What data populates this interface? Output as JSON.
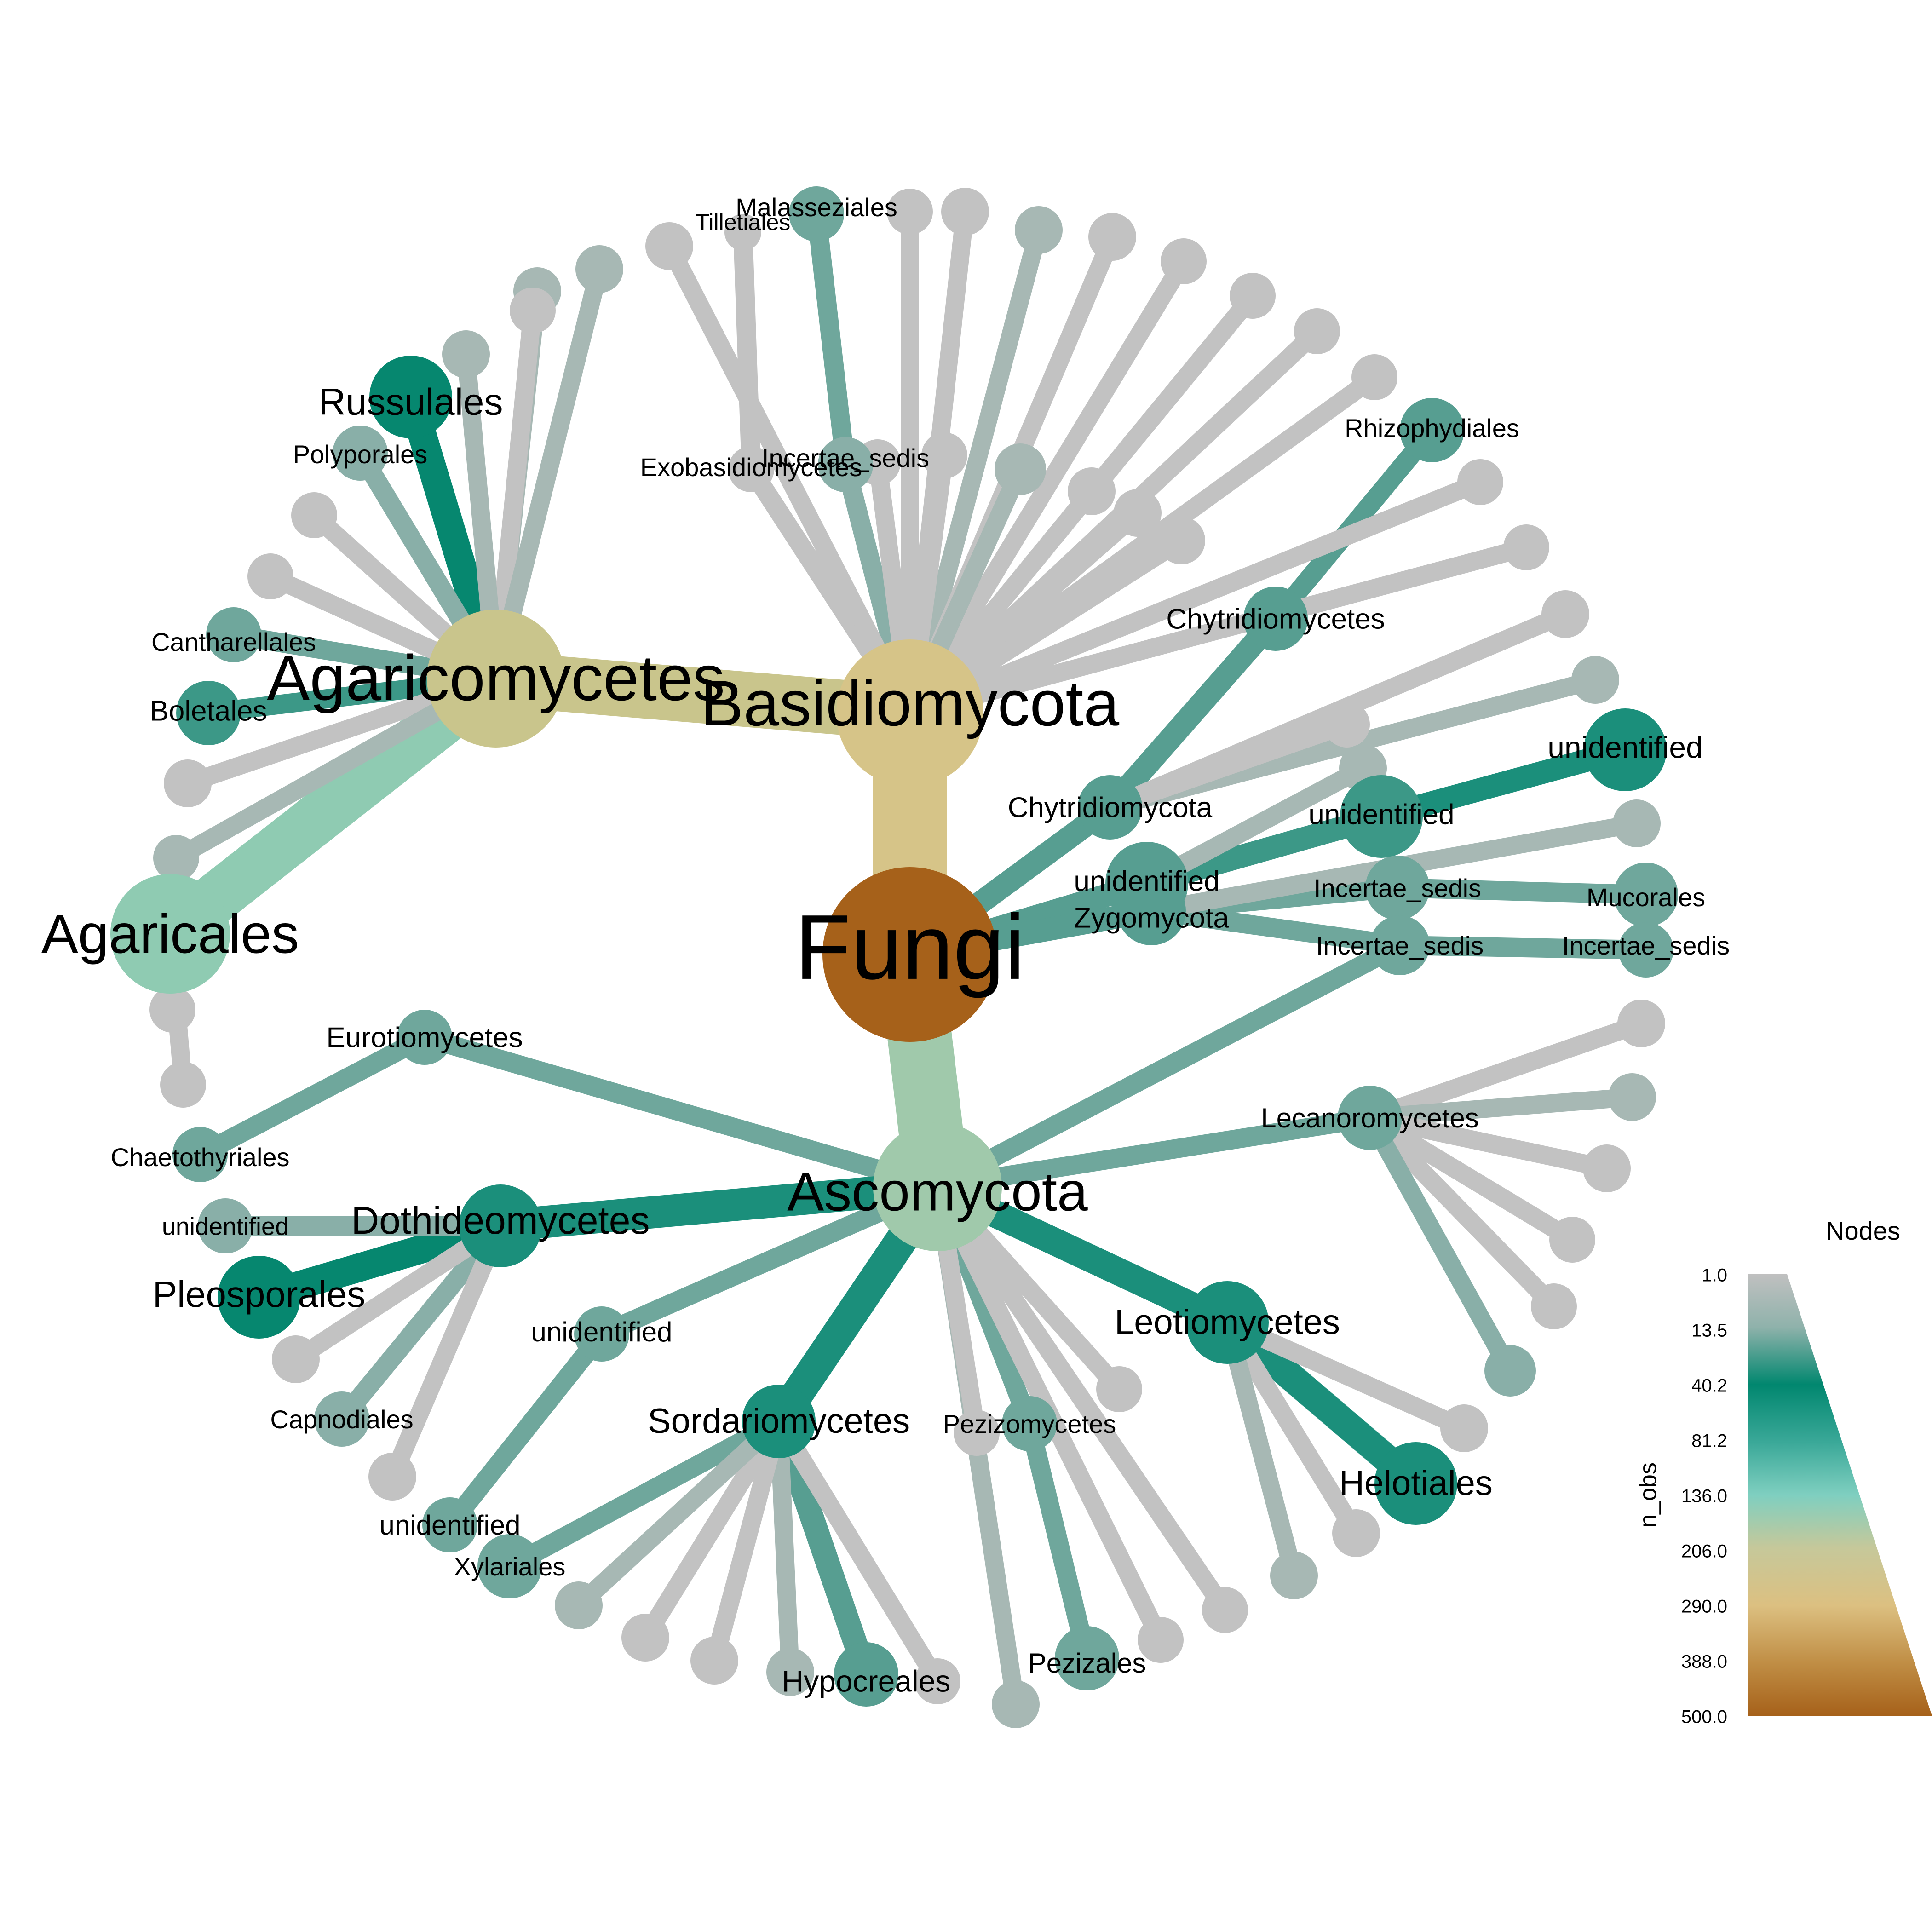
{
  "colors": {
    "c1": "#c2c2c2",
    "c2": "#a7b8b4",
    "c3": "#89afa8",
    "c4": "#6fa79c",
    "c5": "#579e91",
    "c6": "#3c9887",
    "c7": "#1b8f7b",
    "c8": "#06876f",
    "c9": "#8fcbb2",
    "c10": "#a0c9ab",
    "c11": "#c9c58c",
    "c12": "#d6c488",
    "c13": "#a6611a"
  },
  "tree": {
    "nodes": [
      {
        "id": "fungi",
        "label": "Fungi",
        "color": "c13"
      },
      {
        "id": "basidiomycota",
        "label": "Basidiomycota",
        "color": "c12"
      },
      {
        "id": "ascomycota",
        "label": "Ascomycota",
        "color": "c10"
      },
      {
        "id": "agaricomycetes",
        "label": "Agaricomycetes",
        "color": "c11"
      },
      {
        "id": "agaricales",
        "label": "Agaricales",
        "color": "c9"
      },
      {
        "id": "russulales",
        "label": "Russulales",
        "color": "c8"
      },
      {
        "id": "polyporales",
        "label": "Polyporales",
        "color": "c3"
      },
      {
        "id": "cantharellales",
        "label": "Cantharellales",
        "color": "c4"
      },
      {
        "id": "boletales",
        "label": "Boletales",
        "color": "c6"
      },
      {
        "id": "tilletiales",
        "label": "Tilletiales",
        "color": "c1"
      },
      {
        "id": "malasseziales",
        "label": "Malasseziales",
        "color": "c4"
      },
      {
        "id": "exobasidiomycetes",
        "label": "Exobasidiomycetes",
        "color": "c1"
      },
      {
        "id": "incertae_b",
        "label": "Incertae_sedis",
        "color": "c3"
      },
      {
        "id": "chytridiomycota",
        "label": "Chytridiomycota",
        "color": "c5"
      },
      {
        "id": "chytridiomycetes",
        "label": "Chytridiomycetes",
        "color": "c5"
      },
      {
        "id": "rhizophydiales",
        "label": "Rhizophydiales",
        "color": "c5"
      },
      {
        "id": "unid_f1",
        "label": "unidentified",
        "color": "c5"
      },
      {
        "id": "unid_f2",
        "label": "unidentified",
        "color": "c6"
      },
      {
        "id": "unid_f3",
        "label": "unidentified",
        "color": "c7"
      },
      {
        "id": "zygomycota",
        "label": "Zygomycota",
        "color": "c5"
      },
      {
        "id": "incertae_z1",
        "label": "Incertae_sedis",
        "color": "c4"
      },
      {
        "id": "mucorales",
        "label": "Mucorales",
        "color": "c4"
      },
      {
        "id": "incertae_z2",
        "label": "Incertae_sedis",
        "color": "c4"
      },
      {
        "id": "incertae_z3",
        "label": "Incertae_sedis",
        "color": "c4"
      },
      {
        "id": "eurotiomycetes",
        "label": "Eurotiomycetes",
        "color": "c4"
      },
      {
        "id": "chaetothyriales",
        "label": "Chaetothyriales",
        "color": "c4"
      },
      {
        "id": "dothideomycetes",
        "label": "Dothideomycetes",
        "color": "c7"
      },
      {
        "id": "pleosporales",
        "label": "Pleosporales",
        "color": "c8"
      },
      {
        "id": "unid_d1",
        "label": "unidentified",
        "color": "c3"
      },
      {
        "id": "capnodiales",
        "label": "Capnodiales",
        "color": "c3"
      },
      {
        "id": "unid_a1",
        "label": "unidentified",
        "color": "c4"
      },
      {
        "id": "unid_a2",
        "label": "unidentified",
        "color": "c4"
      },
      {
        "id": "sordariomycetes",
        "label": "Sordariomycetes",
        "color": "c7"
      },
      {
        "id": "xylariales",
        "label": "Xylariales",
        "color": "c4"
      },
      {
        "id": "hypocreales",
        "label": "Hypocreales",
        "color": "c5"
      },
      {
        "id": "pezizomycetes",
        "label": "Pezizomycetes",
        "color": "c4"
      },
      {
        "id": "pezizales",
        "label": "Pezizales",
        "color": "c4"
      },
      {
        "id": "leotiomycetes",
        "label": "Leotiomycetes",
        "color": "c7"
      },
      {
        "id": "helotiales",
        "label": "Helotiales",
        "color": "c7"
      },
      {
        "id": "lecanoromycetes",
        "label": "Lecanoromycetes",
        "color": "c4"
      }
    ],
    "edges": [
      [
        "fungi",
        "basidiomycota"
      ],
      [
        "fungi",
        "ascomycota"
      ],
      [
        "fungi",
        "chytridiomycota"
      ],
      [
        "fungi",
        "unid_f1"
      ],
      [
        "fungi",
        "zygomycota"
      ],
      [
        "basidiomycota",
        "agaricomycetes"
      ],
      [
        "basidiomycota",
        "exobasidiomycetes"
      ],
      [
        "basidiomycota",
        "incertae_b"
      ],
      [
        "agaricomycetes",
        "agaricales"
      ],
      [
        "agaricomycetes",
        "russulales"
      ],
      [
        "agaricomycetes",
        "polyporales"
      ],
      [
        "agaricomycetes",
        "cantharellales"
      ],
      [
        "agaricomycetes",
        "boletales"
      ],
      [
        "exobasidiomycetes",
        "tilletiales"
      ],
      [
        "incertae_b",
        "malasseziales"
      ],
      [
        "chytridiomycota",
        "chytridiomycetes"
      ],
      [
        "chytridiomycetes",
        "rhizophydiales"
      ],
      [
        "unid_f1",
        "unid_f2"
      ],
      [
        "unid_f2",
        "unid_f3"
      ],
      [
        "zygomycota",
        "incertae_z1"
      ],
      [
        "zygomycota",
        "incertae_z2"
      ],
      [
        "incertae_z1",
        "mucorales"
      ],
      [
        "incertae_z2",
        "incertae_z3"
      ],
      [
        "ascomycota",
        "eurotiomycetes"
      ],
      [
        "ascomycota",
        "dothideomycetes"
      ],
      [
        "ascomycota",
        "unid_a1"
      ],
      [
        "ascomycota",
        "sordariomycetes"
      ],
      [
        "ascomycota",
        "pezizomycetes"
      ],
      [
        "ascomycota",
        "leotiomycetes"
      ],
      [
        "ascomycota",
        "lecanoromycetes"
      ],
      [
        "ascomycota",
        "incertae_z2"
      ],
      [
        "eurotiomycetes",
        "chaetothyriales"
      ],
      [
        "dothideomycetes",
        "pleosporales"
      ],
      [
        "dothideomycetes",
        "unid_d1"
      ],
      [
        "dothideomycetes",
        "capnodiales"
      ],
      [
        "unid_a1",
        "unid_a2"
      ],
      [
        "sordariomycetes",
        "xylariales"
      ],
      [
        "sordariomycetes",
        "hypocreales"
      ],
      [
        "pezizomycetes",
        "pezizales"
      ],
      [
        "leotiomycetes",
        "helotiales"
      ]
    ]
  },
  "legend": {
    "title": "Nodes",
    "axis_label": "n_obs",
    "ticks": [
      "1.0",
      "13.5",
      "40.2",
      "81.2",
      "136.0",
      "206.0",
      "290.0",
      "388.0",
      "500.0"
    ]
  }
}
